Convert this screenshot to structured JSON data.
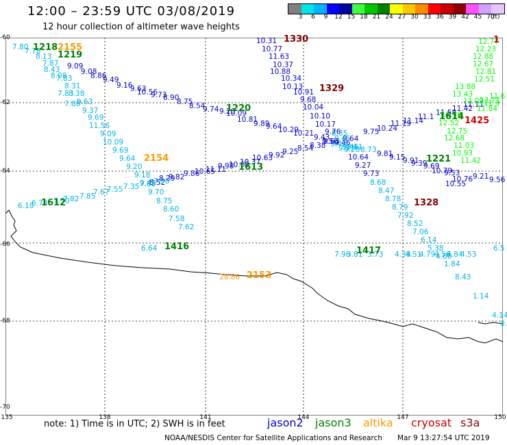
{
  "title": "12:00 – 23:59 UTC 03/08/2019",
  "subtitle": "12 hour collection of altimeter wave heights",
  "colorbar": {
    "unit": "(ft)",
    "colors": [
      "#808080",
      "#00e5e5",
      "#00b4ff",
      "#0000ff",
      "#0000a0",
      "#40ff40",
      "#00c800",
      "#008200",
      "#ffff00",
      "#ffc800",
      "#ff8c00",
      "#ff0000",
      "#c80000",
      "#8c0000",
      "#ff50ff",
      "#d2a0ff",
      "#e6c8ff"
    ],
    "labels": [
      "3",
      "6",
      "9",
      "12",
      "15",
      "18",
      "21",
      "24",
      "27",
      "30",
      "33",
      "36",
      "39",
      "42",
      "45",
      "70"
    ]
  },
  "axes": {
    "lat_labels": [
      "-60",
      "-62",
      "-64",
      "-66",
      "-68",
      "-70"
    ],
    "lon_labels": [
      "135",
      "138",
      "141",
      "144",
      "147",
      "150"
    ]
  },
  "note": "note:  1) Time is in UTC;  2) SWH is in feet",
  "legend": [
    {
      "name": "jason2",
      "color": "#0000cc"
    },
    {
      "name": "jason3",
      "color": "#008000"
    },
    {
      "name": "altika",
      "color": "#ff9900"
    },
    {
      "name": "cryosat",
      "color": "#cc0000"
    },
    {
      "name": "s3a",
      "color": "#800000"
    }
  ],
  "credit": "NOAA/NESDIS Center for Satellite Applications and Research",
  "credit_time": "Mar  9 13:27:54 UTC 2019",
  "time_labels": [
    {
      "text": "1218",
      "color": "#008000"
    },
    {
      "text": "2155",
      "color": "#ff9900"
    },
    {
      "text": "1219",
      "color": "#008000"
    },
    {
      "text": "1330",
      "color": "#800000"
    },
    {
      "text": "1329",
      "color": "#800000"
    },
    {
      "text": "1220",
      "color": "#008000"
    },
    {
      "text": "1614",
      "color": "#008000"
    },
    {
      "text": "1425",
      "color": "#cc0000"
    },
    {
      "text": "1",
      "color": "#cc0000"
    },
    {
      "text": "2154",
      "color": "#ff9900"
    },
    {
      "text": "1613",
      "color": "#008000"
    },
    {
      "text": "1221",
      "color": "#008000"
    },
    {
      "text": "1328",
      "color": "#800000"
    },
    {
      "text": "1612",
      "color": "#008000"
    },
    {
      "text": "1416",
      "color": "#008000"
    },
    {
      "text": "1417",
      "color": "#008000"
    },
    {
      "text": "2153",
      "color": "#ff9900"
    }
  ],
  "tracks": [
    {
      "color": "#00b4e6",
      "values": [
        "7.80",
        "7.78",
        "8.13",
        "7.87",
        "8.43",
        "7.83",
        "8.31",
        "8.08",
        "7.83",
        "7.86",
        "8.38",
        "9.63",
        "9.37",
        "9.69",
        "11.56",
        "9.09",
        "10.09",
        "9.69",
        "9.64",
        "9.20",
        "9.18",
        "9.45",
        "9.70",
        "8.75",
        "8.60",
        "7.58",
        "7.62"
      ]
    },
    {
      "color": "#0000cc",
      "values": [
        "9.09",
        "9.08",
        "8.86",
        "9.49",
        "9.16",
        "9.63",
        "10.56",
        "9.73",
        "8.90",
        "8.75",
        "8.54",
        "9.74",
        "9.20",
        "10.09",
        "10.81",
        "9.89",
        "9.64",
        "10.29",
        "10.21",
        "9.43",
        "9.56",
        "9.46",
        "9.64",
        "9.75",
        "10.24",
        "11.19",
        "11.14",
        "11.1",
        "11.58",
        "11.42",
        "11.11"
      ]
    },
    {
      "color": "#00b4e6",
      "values": [
        "8.35",
        "9.45",
        "9.48",
        "9.46",
        "9.37",
        "9.28",
        "8.73",
        "9.11"
      ]
    },
    {
      "color": "#0000cc",
      "values": [
        "10.31",
        "10.77",
        "11.63",
        "10.37",
        "10.88",
        "10.34",
        "10.13",
        "10.91",
        "9.68",
        "10.04",
        "10.10",
        "10.17",
        "9.76",
        "10.64",
        "9.27",
        "9.73",
        "9.81",
        "9.15",
        "9.91",
        "9.39",
        "9.69",
        "10.79",
        "9.53",
        "9.21",
        "9.56",
        "10.76",
        "10.55"
      ]
    },
    {
      "color": "#00b4e6",
      "values": [
        "8.68",
        "8.47",
        "8.78",
        "8.79",
        "7.92",
        "8.52",
        "7.06",
        "6.14",
        "5.38",
        "4.60",
        "1.84",
        "8.43",
        "1.14",
        "4.14",
        "0.8"
      ]
    },
    {
      "color": "#0000cc",
      "values": [
        "8.52",
        "8.29",
        "9.82",
        "9.86",
        "10.65",
        "11.11",
        "9.98",
        "10.09",
        "10.37",
        "10.63",
        "9.92",
        "9.25",
        "8.54",
        "8.38",
        "9.63"
      ]
    },
    {
      "color": "#00b4e6",
      "values": [
        "6.18",
        "6.73",
        "7.90",
        "7.82",
        "7.85",
        "7.67",
        "7.55",
        "7.35",
        "7.85",
        "7.98",
        "6.64",
        "7.96",
        "3.81",
        "3.73",
        "4.38",
        "4.51",
        "4.79",
        "4.56",
        "4.84",
        "4.53",
        "6.5"
      ]
    },
    {
      "color": "#00ff00",
      "values": [
        "12.77",
        "12.23",
        "12.88",
        "12.67",
        "12.81",
        "12.51",
        "13.88",
        "13.43",
        "14.09",
        "13.71",
        "12.36",
        "12.52",
        "12.75",
        "12.68",
        "11.03",
        "10.93",
        "11.42",
        "11.84",
        "11.9",
        "11.6"
      ]
    },
    {
      "color": "#ff9900",
      "values": [
        "28.86"
      ]
    }
  ]
}
